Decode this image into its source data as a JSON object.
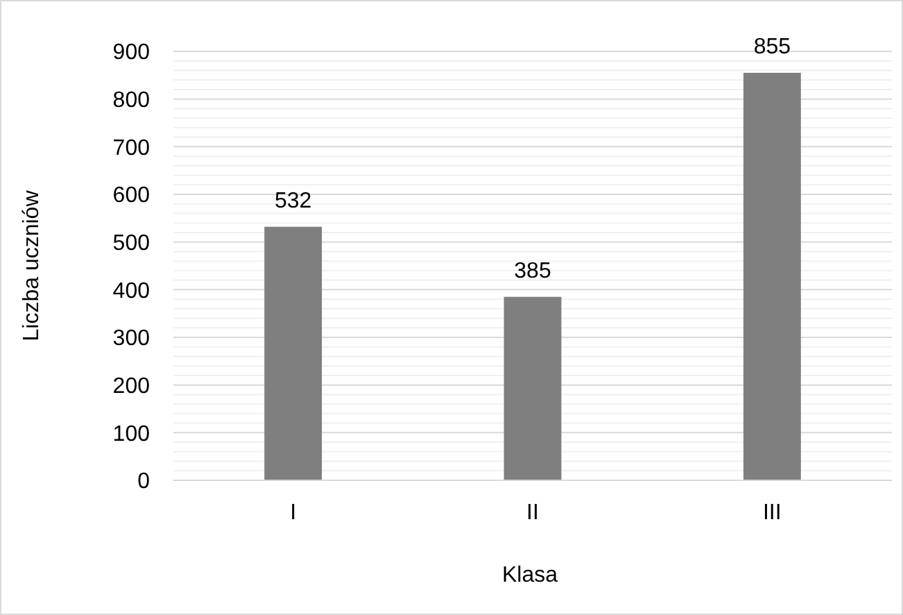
{
  "chart_data": {
    "type": "bar",
    "xlabel": "Klasa",
    "ylabel": "Liczba uczniów",
    "categories": [
      "I",
      "II",
      "III"
    ],
    "values": [
      532,
      385,
      855
    ],
    "color": "#7f7f7f",
    "ylim": [
      0,
      900
    ],
    "yticks": [
      0,
      100,
      200,
      300,
      400,
      500,
      600,
      700,
      800,
      900
    ],
    "grid": true,
    "data_labels": true
  }
}
